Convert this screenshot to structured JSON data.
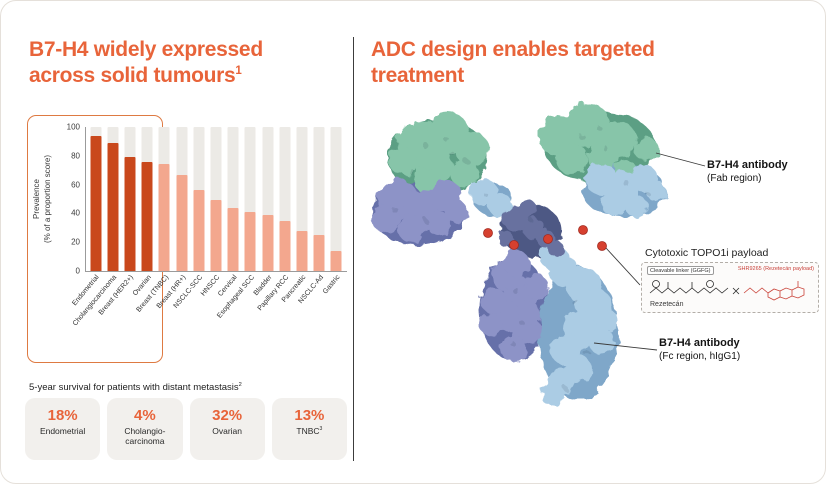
{
  "left": {
    "title_line1": "B7-H4 widely expressed",
    "title_line2": "across solid tumours",
    "title_sup": "1",
    "survival_heading": "5-year survival for patients with distant metastasis",
    "survival_sup": "2",
    "stats": [
      {
        "value": "18%",
        "label": "Endometrial"
      },
      {
        "value": "4%",
        "label": "Cholangio-carcinoma"
      },
      {
        "value": "32%",
        "label": "Ovarian"
      },
      {
        "value": "13%",
        "label": "TNBC",
        "sup": "3"
      }
    ]
  },
  "chart_data": {
    "type": "bar",
    "ylabel": "Prevalence (% of a proportion score)",
    "ylabel_lines": [
      "Prevalence",
      "(% of a proportion score)"
    ],
    "ylim": [
      0,
      100
    ],
    "yticks": [
      0,
      20,
      40,
      60,
      80,
      100
    ],
    "categories": [
      "Endometrial",
      "Cholangiocarcinoma",
      "Breast (HER2+)",
      "Ovarian",
      "Breast (TNBC)",
      "Breast (HR+)",
      "NSCLC-SCC",
      "HNSCC",
      "Cervical",
      "Esophageal SCC",
      "Bladder",
      "Papillary RCC",
      "Pancreatic",
      "NSCLC-Ad",
      "Gastric"
    ],
    "values": [
      94,
      89,
      79,
      76,
      74,
      67,
      56,
      49,
      44,
      41,
      39,
      35,
      28,
      25,
      14
    ],
    "highlight_count": 4,
    "grid": false,
    "legend": false,
    "colors": {
      "highlight": "#C9481C",
      "normal": "#F3A78E",
      "track": "#ECEAE6",
      "highlight_box": "#DE7A42"
    }
  },
  "right": {
    "title_line1": "ADC design enables targeted",
    "title_line2": "treatment",
    "fab_label": {
      "bold": "B7-H4 antibody",
      "sub": "(Fab region)"
    },
    "payload": {
      "title": "Cytotoxic TOPO1i payload",
      "linker_tag": "Cleavable linker (GGFG)",
      "payload_tag": "SHR9265 (Rezetecán payload)",
      "name": "Rezetecán"
    },
    "fc_label": {
      "bold": "B7-H4 antibody",
      "sub": "(Fc region, hIgG1)"
    }
  }
}
